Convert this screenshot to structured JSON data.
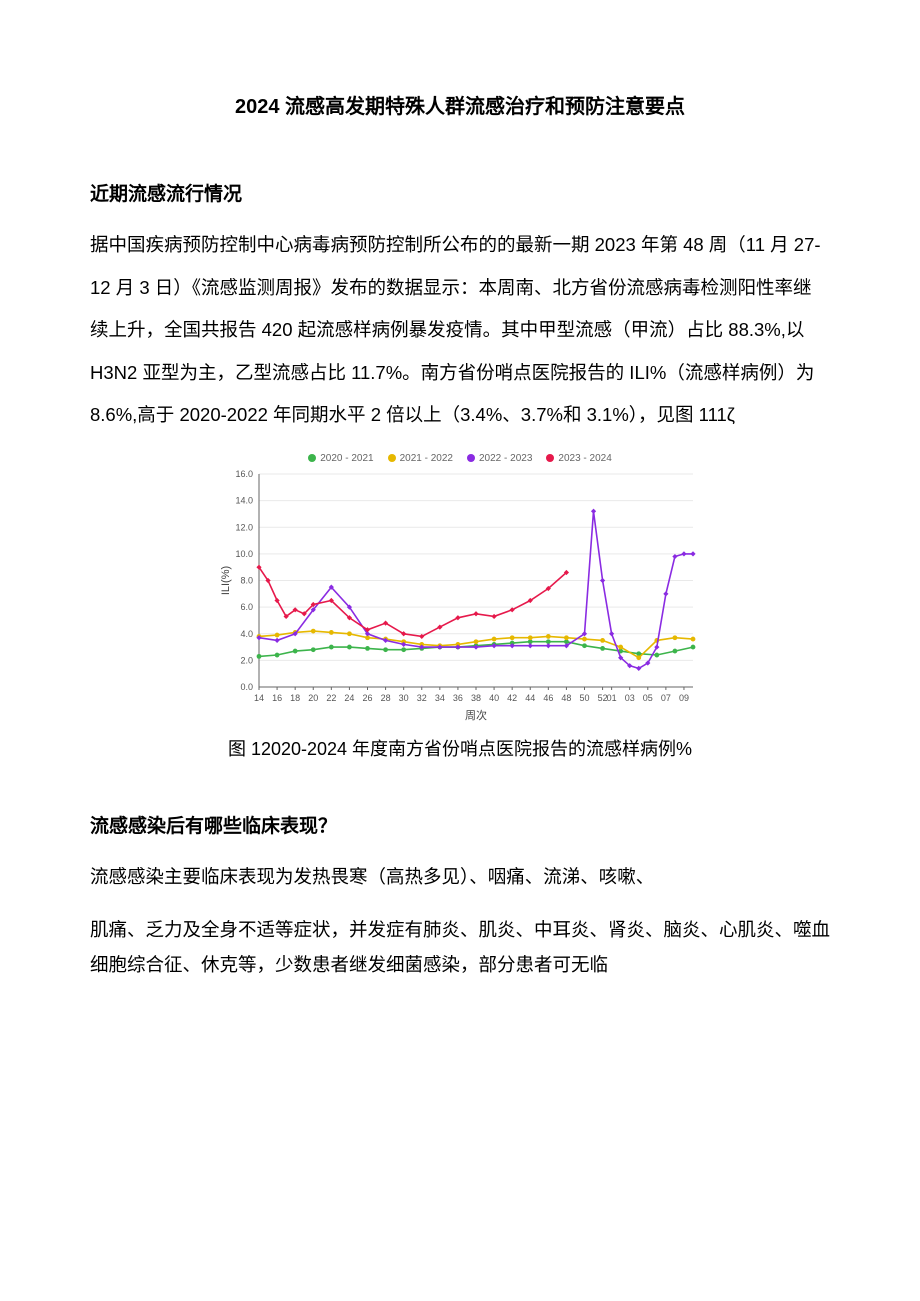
{
  "title": "2024 流感高发期特殊人群流感治疗和预防注意要点",
  "section1_heading": "近期流感流行情况",
  "section1_body": "据中国疾病预防控制中心病毒病预防控制所公布的的最新一期 2023 年第 48 周（11 月 27-12 月 3 日）《流感监测周报》发布的数据显示：本周南、北方省份流感病毒检测阳性率继续上升，全国共报告 420 起流感样病例暴发疫情。其中甲型流感（甲流）占比 88.3%,以 H3N2 亚型为主，乙型流感占比 11.7%。南方省份哨点医院报告的 ILI%（流感样病例）为 8.6%,高于 2020-2022 年同期水平 2 倍以上（3.4%、3.7%和 3.1%），见图 111ζ",
  "chart": {
    "type": "line",
    "background_color": "#ffffff",
    "grid_color": "#e9e9e9",
    "axis_color": "#666666",
    "tick_font_size": 9,
    "legend_font_size": 10,
    "ylabel": "ILI(%)",
    "xlabel": "周次",
    "ylim": [
      0,
      16
    ],
    "ytick_step": 2,
    "x_ticks": [
      14,
      16,
      18,
      20,
      22,
      24,
      26,
      28,
      30,
      32,
      34,
      36,
      38,
      40,
      42,
      44,
      46,
      48,
      50,
      52,
      "01",
      "03",
      "05",
      "07",
      "09"
    ],
    "x_domain": [
      14,
      62
    ],
    "series": [
      {
        "name": "2020 - 2021",
        "color": "#3cb44b",
        "marker": "circle",
        "points": [
          [
            14,
            2.3
          ],
          [
            16,
            2.4
          ],
          [
            18,
            2.7
          ],
          [
            20,
            2.8
          ],
          [
            22,
            3.0
          ],
          [
            24,
            3.0
          ],
          [
            26,
            2.9
          ],
          [
            28,
            2.8
          ],
          [
            30,
            2.8
          ],
          [
            32,
            2.9
          ],
          [
            34,
            3.0
          ],
          [
            36,
            3.0
          ],
          [
            38,
            3.1
          ],
          [
            40,
            3.2
          ],
          [
            42,
            3.3
          ],
          [
            44,
            3.4
          ],
          [
            46,
            3.4
          ],
          [
            48,
            3.4
          ],
          [
            50,
            3.1
          ],
          [
            52,
            2.9
          ],
          [
            54,
            2.7
          ],
          [
            56,
            2.5
          ],
          [
            58,
            2.4
          ],
          [
            60,
            2.7
          ],
          [
            62,
            3.0
          ]
        ]
      },
      {
        "name": "2021 - 2022",
        "color": "#e6b800",
        "marker": "circle",
        "points": [
          [
            14,
            3.8
          ],
          [
            16,
            3.9
          ],
          [
            18,
            4.1
          ],
          [
            20,
            4.2
          ],
          [
            22,
            4.1
          ],
          [
            24,
            4.0
          ],
          [
            26,
            3.7
          ],
          [
            28,
            3.6
          ],
          [
            30,
            3.4
          ],
          [
            32,
            3.2
          ],
          [
            34,
            3.1
          ],
          [
            36,
            3.2
          ],
          [
            38,
            3.4
          ],
          [
            40,
            3.6
          ],
          [
            42,
            3.7
          ],
          [
            44,
            3.7
          ],
          [
            46,
            3.8
          ],
          [
            48,
            3.7
          ],
          [
            50,
            3.6
          ],
          [
            52,
            3.5
          ],
          [
            54,
            3.0
          ],
          [
            56,
            2.2
          ],
          [
            58,
            3.5
          ],
          [
            60,
            3.7
          ],
          [
            62,
            3.6
          ]
        ]
      },
      {
        "name": "2022 - 2023",
        "color": "#8a2be2",
        "marker": "diamond",
        "points": [
          [
            14,
            3.7
          ],
          [
            16,
            3.5
          ],
          [
            18,
            4.0
          ],
          [
            20,
            5.8
          ],
          [
            22,
            7.5
          ],
          [
            24,
            6.0
          ],
          [
            26,
            4.0
          ],
          [
            28,
            3.5
          ],
          [
            30,
            3.2
          ],
          [
            32,
            3.0
          ],
          [
            34,
            3.0
          ],
          [
            36,
            3.0
          ],
          [
            38,
            3.0
          ],
          [
            40,
            3.1
          ],
          [
            42,
            3.1
          ],
          [
            44,
            3.1
          ],
          [
            46,
            3.1
          ],
          [
            48,
            3.1
          ],
          [
            50,
            4.0
          ],
          [
            51,
            13.2
          ],
          [
            52,
            8.0
          ],
          [
            53,
            4.0
          ],
          [
            54,
            2.2
          ],
          [
            55,
            1.6
          ],
          [
            56,
            1.4
          ],
          [
            57,
            1.8
          ],
          [
            58,
            3.0
          ],
          [
            59,
            7.0
          ],
          [
            60,
            9.8
          ],
          [
            61,
            10.0
          ],
          [
            62,
            10.0
          ]
        ]
      },
      {
        "name": "2023 - 2024",
        "color": "#e6194b",
        "marker": "diamond",
        "points": [
          [
            14,
            9.0
          ],
          [
            15,
            8.0
          ],
          [
            16,
            6.5
          ],
          [
            17,
            5.3
          ],
          [
            18,
            5.8
          ],
          [
            19,
            5.5
          ],
          [
            20,
            6.2
          ],
          [
            22,
            6.5
          ],
          [
            24,
            5.2
          ],
          [
            26,
            4.3
          ],
          [
            28,
            4.8
          ],
          [
            30,
            4.0
          ],
          [
            32,
            3.8
          ],
          [
            34,
            4.5
          ],
          [
            36,
            5.2
          ],
          [
            38,
            5.5
          ],
          [
            40,
            5.3
          ],
          [
            42,
            5.8
          ],
          [
            44,
            6.5
          ],
          [
            46,
            7.4
          ],
          [
            48,
            8.6
          ]
        ]
      }
    ]
  },
  "chart_caption": "图 12020-2024 年度南方省份哨点医院报告的流感样病例%",
  "section2_heading": "流感感染后有哪些临床表现？",
  "section2_p1": "流感感染主要临床表现为发热畏寒（高热多见）、咽痛、流涕、咳嗽、",
  "section2_p2": "肌痛、乏力及全身不适等症状，并发症有肺炎、肌炎、中耳炎、肾炎、脑炎、心肌炎、噬血细胞综合征、休克等，少数患者继发细菌感染，部分患者可无临"
}
